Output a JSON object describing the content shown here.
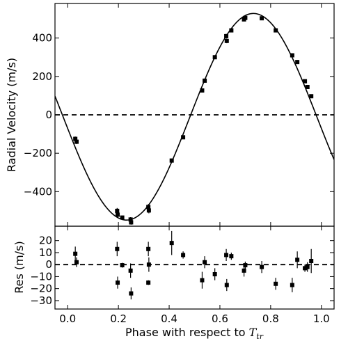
{
  "chart_data": [
    {
      "type": "scatter",
      "panel": "radial-velocity",
      "xlabel_text": "Phase with respect to ",
      "xlabel_symbol": "T",
      "xlabel_subscript": "tr",
      "ylabel": "Radial Velocity (m/s)",
      "xlim": [
        -0.05,
        1.05
      ],
      "ylim": [
        -580,
        580
      ],
      "x_ticks": [
        0.0,
        0.2,
        0.4,
        0.6,
        0.8,
        1.0
      ],
      "x_tick_labels": [
        "0.0",
        "0.2",
        "0.4",
        "0.6",
        "0.8",
        "1.0"
      ],
      "y_ticks": [
        -400,
        -200,
        0,
        200,
        400
      ],
      "y_tick_labels": [
        "−400",
        "−200",
        "0",
        "200",
        "400"
      ],
      "zero_line": "dashed",
      "model_curve": {
        "style": "solid",
        "amplitude": 538,
        "offset": -10,
        "phase_of_minimum": 0.232
      },
      "points": [
        {
          "x": 0.03,
          "y": -125,
          "err": 12
        },
        {
          "x": 0.035,
          "y": -140,
          "err": 12
        },
        {
          "x": 0.195,
          "y": -500,
          "err": 15
        },
        {
          "x": 0.197,
          "y": -520,
          "err": 15
        },
        {
          "x": 0.215,
          "y": -535,
          "err": 10
        },
        {
          "x": 0.248,
          "y": -545,
          "err": 12
        },
        {
          "x": 0.25,
          "y": -560,
          "err": 12
        },
        {
          "x": 0.318,
          "y": -480,
          "err": 15
        },
        {
          "x": 0.32,
          "y": -498,
          "err": 15
        },
        {
          "x": 0.41,
          "y": -238,
          "err": 10
        },
        {
          "x": 0.455,
          "y": -117,
          "err": 10
        },
        {
          "x": 0.53,
          "y": 127,
          "err": 10
        },
        {
          "x": 0.54,
          "y": 178,
          "err": 10
        },
        {
          "x": 0.58,
          "y": 300,
          "err": 10
        },
        {
          "x": 0.625,
          "y": 410,
          "err": 12
        },
        {
          "x": 0.627,
          "y": 385,
          "err": 12
        },
        {
          "x": 0.645,
          "y": 440,
          "err": 10
        },
        {
          "x": 0.695,
          "y": 497,
          "err": 10
        },
        {
          "x": 0.7,
          "y": 505,
          "err": 10
        },
        {
          "x": 0.765,
          "y": 503,
          "err": 10
        },
        {
          "x": 0.82,
          "y": 440,
          "err": 10
        },
        {
          "x": 0.885,
          "y": 310,
          "err": 10
        },
        {
          "x": 0.905,
          "y": 275,
          "err": 10
        },
        {
          "x": 0.935,
          "y": 175,
          "err": 10
        },
        {
          "x": 0.945,
          "y": 145,
          "err": 10
        },
        {
          "x": 0.96,
          "y": 97,
          "err": 10
        }
      ]
    },
    {
      "type": "scatter",
      "panel": "residuals",
      "ylabel": "Res (m/s)",
      "xlim": [
        -0.05,
        1.05
      ],
      "ylim": [
        -37,
        32
      ],
      "y_ticks": [
        -30,
        -20,
        -10,
        0,
        10,
        20
      ],
      "y_tick_labels": [
        "−30",
        "−20",
        "−10",
        "0",
        "10",
        "20"
      ],
      "zero_line": "dashed",
      "points": [
        {
          "x": 0.03,
          "y": 9,
          "err": 6
        },
        {
          "x": 0.035,
          "y": 2,
          "err": 4
        },
        {
          "x": 0.195,
          "y": 13,
          "err": 6
        },
        {
          "x": 0.197,
          "y": -15,
          "err": 5
        },
        {
          "x": 0.215,
          "y": -0.5,
          "err": 2
        },
        {
          "x": 0.248,
          "y": -5,
          "err": 6
        },
        {
          "x": 0.25,
          "y": -24,
          "err": 5
        },
        {
          "x": 0.318,
          "y": 13,
          "err": 6
        },
        {
          "x": 0.32,
          "y": 0,
          "err": 6
        },
        {
          "x": 0.318,
          "y": -15,
          "err": 2
        },
        {
          "x": 0.41,
          "y": 18,
          "err": 10
        },
        {
          "x": 0.455,
          "y": 8,
          "err": 3
        },
        {
          "x": 0.53,
          "y": -13,
          "err": 7
        },
        {
          "x": 0.54,
          "y": 2,
          "err": 5
        },
        {
          "x": 0.58,
          "y": -8,
          "err": 5
        },
        {
          "x": 0.625,
          "y": 8,
          "err": 5
        },
        {
          "x": 0.627,
          "y": -17,
          "err": 5
        },
        {
          "x": 0.645,
          "y": 7,
          "err": 3
        },
        {
          "x": 0.695,
          "y": -5,
          "err": 5
        },
        {
          "x": 0.7,
          "y": -0.5,
          "err": 3
        },
        {
          "x": 0.765,
          "y": -2,
          "err": 5
        },
        {
          "x": 0.82,
          "y": -16,
          "err": 5
        },
        {
          "x": 0.885,
          "y": -17,
          "err": 6
        },
        {
          "x": 0.905,
          "y": 4,
          "err": 7
        },
        {
          "x": 0.935,
          "y": -3,
          "err": 3
        },
        {
          "x": 0.945,
          "y": -2,
          "err": 4
        },
        {
          "x": 0.96,
          "y": 3,
          "err": 10
        }
      ]
    }
  ]
}
